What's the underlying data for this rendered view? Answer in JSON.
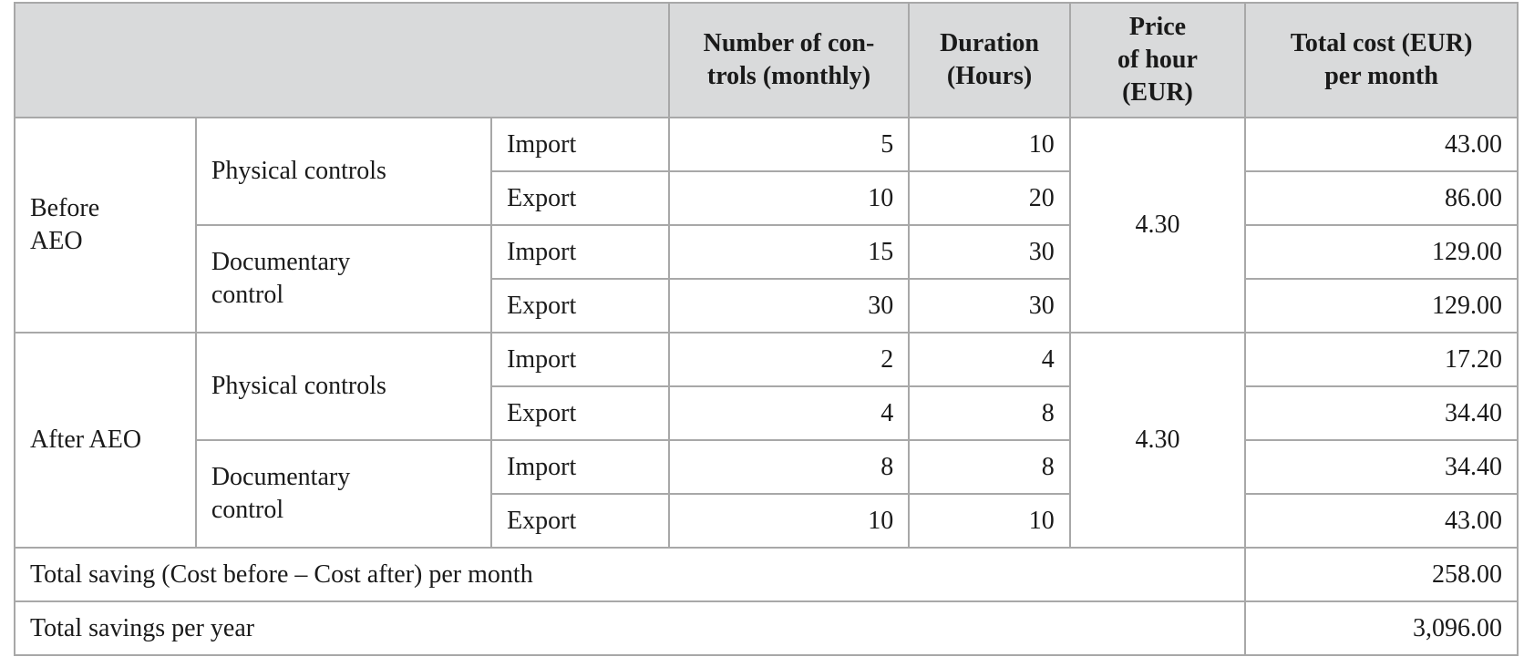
{
  "header": {
    "blank": "",
    "controls": "Number of con-\ntrols (monthly)",
    "duration": "Duration\n(Hours)",
    "price": "Price\nof hour\n(EUR)",
    "total": "Total cost (EUR)\nper month"
  },
  "before": {
    "group": "Before\nAEO",
    "price": "4.30",
    "physical": {
      "label": "Physical controls",
      "import": {
        "type": "Import",
        "controls": "5",
        "duration": "10",
        "total": "43.00"
      },
      "export": {
        "type": "Export",
        "controls": "10",
        "duration": "20",
        "total": "86.00"
      }
    },
    "documentary": {
      "label": "Documentary\ncontrol",
      "import": {
        "type": "Import",
        "controls": "15",
        "duration": "30",
        "total": "129.00"
      },
      "export": {
        "type": "Export",
        "controls": "30",
        "duration": "30",
        "total": "129.00"
      }
    }
  },
  "after": {
    "group": "After AEO",
    "price": "4.30",
    "physical": {
      "label": "Physical controls",
      "import": {
        "type": "Import",
        "controls": "2",
        "duration": "4",
        "total": "17.20"
      },
      "export": {
        "type": "Export",
        "controls": "4",
        "duration": "8",
        "total": "34.40"
      }
    },
    "documentary": {
      "label": "Documentary\ncontrol",
      "import": {
        "type": "Import",
        "controls": "8",
        "duration": "8",
        "total": "34.40"
      },
      "export": {
        "type": "Export",
        "controls": "10",
        "duration": "10",
        "total": "43.00"
      }
    }
  },
  "summary": {
    "monthly_label": "Total saving (Cost before – Cost after) per month",
    "monthly_value": "258.00",
    "yearly_label": "Total savings per year",
    "yearly_value": "3,096.00"
  }
}
